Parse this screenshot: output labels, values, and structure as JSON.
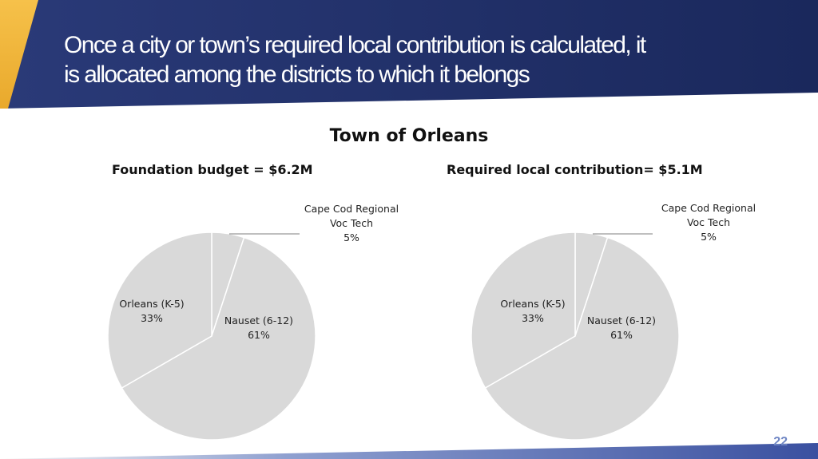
{
  "slide": {
    "title_lines": [
      "Once a city or town’s required local contribution is calculated, it",
      "is allocated among the districts to which it belongs"
    ],
    "page_number": "22"
  },
  "colors": {
    "header_dark": "#1e2d63",
    "header_gold": "#f0b43a",
    "slice_fill": "#d9d9d9",
    "slice_stroke": "#ffffff",
    "page_number": "#6f86c4"
  },
  "chart_data": [
    {
      "type": "pie",
      "title": "Town of Orleans",
      "subtitle": "Foundation budget = $6.2M",
      "slices": [
        {
          "label": "Cape Cod Regional Voc Tech",
          "value": 5,
          "label_text": "5%"
        },
        {
          "label": "Nauset (6-12)",
          "value": 61,
          "label_text": "61%"
        },
        {
          "label": "Orleans (K-5)",
          "value": 33,
          "label_text": "33%"
        }
      ]
    },
    {
      "type": "pie",
      "title": "Town of Orleans",
      "subtitle": "Required local contribution= $5.1M",
      "slices": [
        {
          "label": "Cape Cod Regional Voc Tech",
          "value": 5,
          "label_text": "5%"
        },
        {
          "label": "Nauset (6-12)",
          "value": 61,
          "label_text": "61%"
        },
        {
          "label": "Orleans (K-5)",
          "value": 33,
          "label_text": "33%"
        }
      ]
    }
  ]
}
